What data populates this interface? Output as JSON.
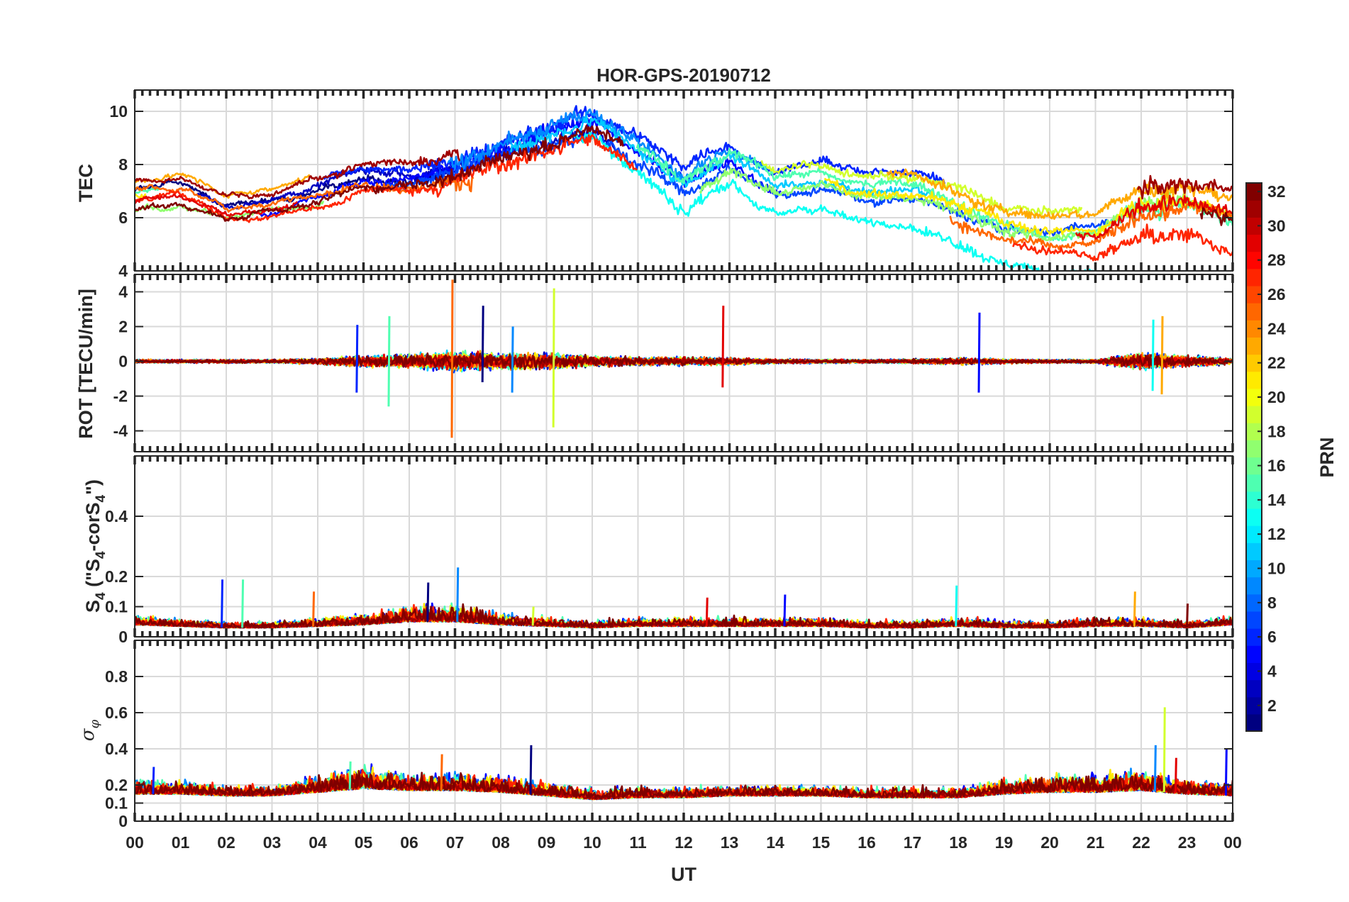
{
  "figure": {
    "title": "HOR-GPS-20190712"
  },
  "chart_data": [
    {
      "type": "line",
      "ylabel": "TEC",
      "ylim": [
        4,
        10.8
      ],
      "yticks": [
        4,
        6,
        8,
        10
      ],
      "ytick_labels": [
        "4",
        "6",
        "8",
        "10"
      ],
      "xlim": [
        0,
        24
      ],
      "grid": true,
      "series_shape": {
        "base_level": [
          6.8,
          7.0,
          6.3,
          6.5,
          7.0,
          7.5,
          7.5,
          7.8,
          8.5,
          9.0,
          9.6,
          8.5,
          7.2,
          8.2,
          7.2,
          7.5,
          7.0,
          7.0,
          6.5,
          5.8,
          5.5,
          5.5,
          6.5,
          6.5,
          6.0
        ],
        "noise": [
          0.15,
          0.15,
          0.15,
          0.15,
          0.2,
          0.3,
          0.35,
          0.7,
          0.7,
          0.65,
          0.5,
          0.5,
          0.5,
          0.4,
          0.3,
          0.3,
          0.3,
          0.3,
          0.5,
          0.4,
          0.3,
          0.3,
          0.8,
          0.7,
          0.4
        ]
      }
    },
    {
      "type": "line",
      "ylabel": "ROT [TECU/min]",
      "ylim": [
        -5.2,
        5.0
      ],
      "yticks": [
        -4,
        -2,
        0,
        2,
        4
      ],
      "ytick_labels": [
        "-4",
        "-2",
        "0",
        "2",
        "4"
      ],
      "xlim": [
        0,
        24
      ],
      "grid": true,
      "series_shape": {
        "base_level": [
          0,
          0,
          0,
          0,
          0,
          0,
          0,
          0,
          0,
          0,
          0,
          0,
          0,
          0,
          0,
          0,
          0,
          0,
          0,
          0,
          0,
          0,
          0,
          0,
          0
        ],
        "noise": [
          0.06,
          0.06,
          0.06,
          0.06,
          0.1,
          0.2,
          0.25,
          0.35,
          0.3,
          0.3,
          0.2,
          0.15,
          0.15,
          0.12,
          0.08,
          0.07,
          0.06,
          0.08,
          0.12,
          0.08,
          0.06,
          0.06,
          0.3,
          0.2,
          0.1
        ]
      },
      "spikes": [
        [
          4.85,
          2.1,
          -1.8
        ],
        [
          5.55,
          2.6,
          -2.6
        ],
        [
          6.93,
          4.7,
          -4.4
        ],
        [
          7.6,
          3.2,
          -1.2
        ],
        [
          8.25,
          2.0,
          -1.8
        ],
        [
          9.15,
          4.2,
          -3.8
        ],
        [
          12.85,
          3.2,
          -1.5
        ],
        [
          18.45,
          2.8,
          -1.8
        ],
        [
          22.25,
          2.4,
          -1.7
        ],
        [
          22.45,
          2.6,
          -1.9
        ]
      ]
    },
    {
      "type": "line",
      "ylabel": "S4 (\"S4-corS4\")",
      "ylabel_sub": "4",
      "ylim": [
        0,
        0.6
      ],
      "yticks": [
        0,
        0.1,
        0.2,
        0.4
      ],
      "ytick_labels": [
        "0",
        "0.1",
        "0.2",
        "0.4"
      ],
      "xlim": [
        0,
        24
      ],
      "grid": true,
      "series_shape": {
        "base_level": [
          0.04,
          0.035,
          0.03,
          0.03,
          0.035,
          0.04,
          0.05,
          0.05,
          0.04,
          0.035,
          0.03,
          0.035,
          0.035,
          0.035,
          0.035,
          0.035,
          0.03,
          0.03,
          0.035,
          0.03,
          0.03,
          0.035,
          0.035,
          0.03,
          0.04
        ],
        "noise": [
          0.015,
          0.012,
          0.01,
          0.01,
          0.015,
          0.02,
          0.025,
          0.03,
          0.02,
          0.015,
          0.012,
          0.015,
          0.015,
          0.015,
          0.015,
          0.015,
          0.012,
          0.012,
          0.015,
          0.012,
          0.012,
          0.015,
          0.015,
          0.012,
          0.015
        ]
      },
      "spikes": [
        [
          1.9,
          0.19
        ],
        [
          2.35,
          0.19
        ],
        [
          3.9,
          0.15
        ],
        [
          6.4,
          0.18
        ],
        [
          7.05,
          0.23
        ],
        [
          8.7,
          0.1
        ],
        [
          12.5,
          0.13
        ],
        [
          14.2,
          0.14
        ],
        [
          17.95,
          0.17
        ],
        [
          21.85,
          0.15
        ],
        [
          23.0,
          0.11
        ]
      ]
    },
    {
      "type": "line",
      "ylabel": "σφ",
      "ylim": [
        0,
        1.0
      ],
      "yticks": [
        0,
        0.1,
        0.2,
        0.4,
        0.6,
        0.8
      ],
      "ytick_labels": [
        "0",
        "0.1",
        "0.2",
        "0.4",
        "0.6",
        "0.8"
      ],
      "xlim": [
        0,
        24
      ],
      "grid": true,
      "series_shape": {
        "base_level": [
          0.15,
          0.15,
          0.14,
          0.14,
          0.16,
          0.18,
          0.17,
          0.17,
          0.16,
          0.14,
          0.12,
          0.13,
          0.13,
          0.14,
          0.14,
          0.14,
          0.13,
          0.13,
          0.13,
          0.15,
          0.16,
          0.16,
          0.17,
          0.15,
          0.14
        ],
        "noise": [
          0.04,
          0.04,
          0.03,
          0.03,
          0.05,
          0.06,
          0.05,
          0.05,
          0.05,
          0.04,
          0.03,
          0.03,
          0.03,
          0.03,
          0.03,
          0.03,
          0.03,
          0.03,
          0.03,
          0.04,
          0.05,
          0.05,
          0.06,
          0.04,
          0.04
        ]
      },
      "spikes": [
        [
          0.4,
          0.3
        ],
        [
          4.7,
          0.33
        ],
        [
          6.7,
          0.37
        ],
        [
          8.65,
          0.42
        ],
        [
          22.3,
          0.42
        ],
        [
          22.5,
          0.63
        ],
        [
          22.75,
          0.35
        ],
        [
          23.85,
          0.4
        ]
      ]
    }
  ],
  "x_axis": {
    "label": "UT",
    "tick_labels": [
      "00",
      "01",
      "02",
      "03",
      "04",
      "05",
      "06",
      "07",
      "08",
      "09",
      "10",
      "11",
      "12",
      "13",
      "14",
      "15",
      "16",
      "17",
      "18",
      "19",
      "20",
      "21",
      "22",
      "23",
      "00"
    ]
  },
  "colorbar": {
    "label": "PRN",
    "min": 1,
    "max": 32,
    "tick_values": [
      2,
      4,
      6,
      8,
      10,
      12,
      14,
      16,
      18,
      20,
      22,
      24,
      26,
      28,
      30,
      32
    ],
    "tick_labels": [
      "2",
      "4",
      "6",
      "8",
      "10",
      "12",
      "14",
      "16",
      "18",
      "20",
      "22",
      "24",
      "26",
      "28",
      "30",
      "32"
    ],
    "colormap": "jet"
  },
  "satellites": [
    1,
    3,
    5,
    6,
    7,
    9,
    11,
    13,
    15,
    17,
    19,
    21,
    23,
    25,
    27,
    29,
    31,
    32
  ]
}
